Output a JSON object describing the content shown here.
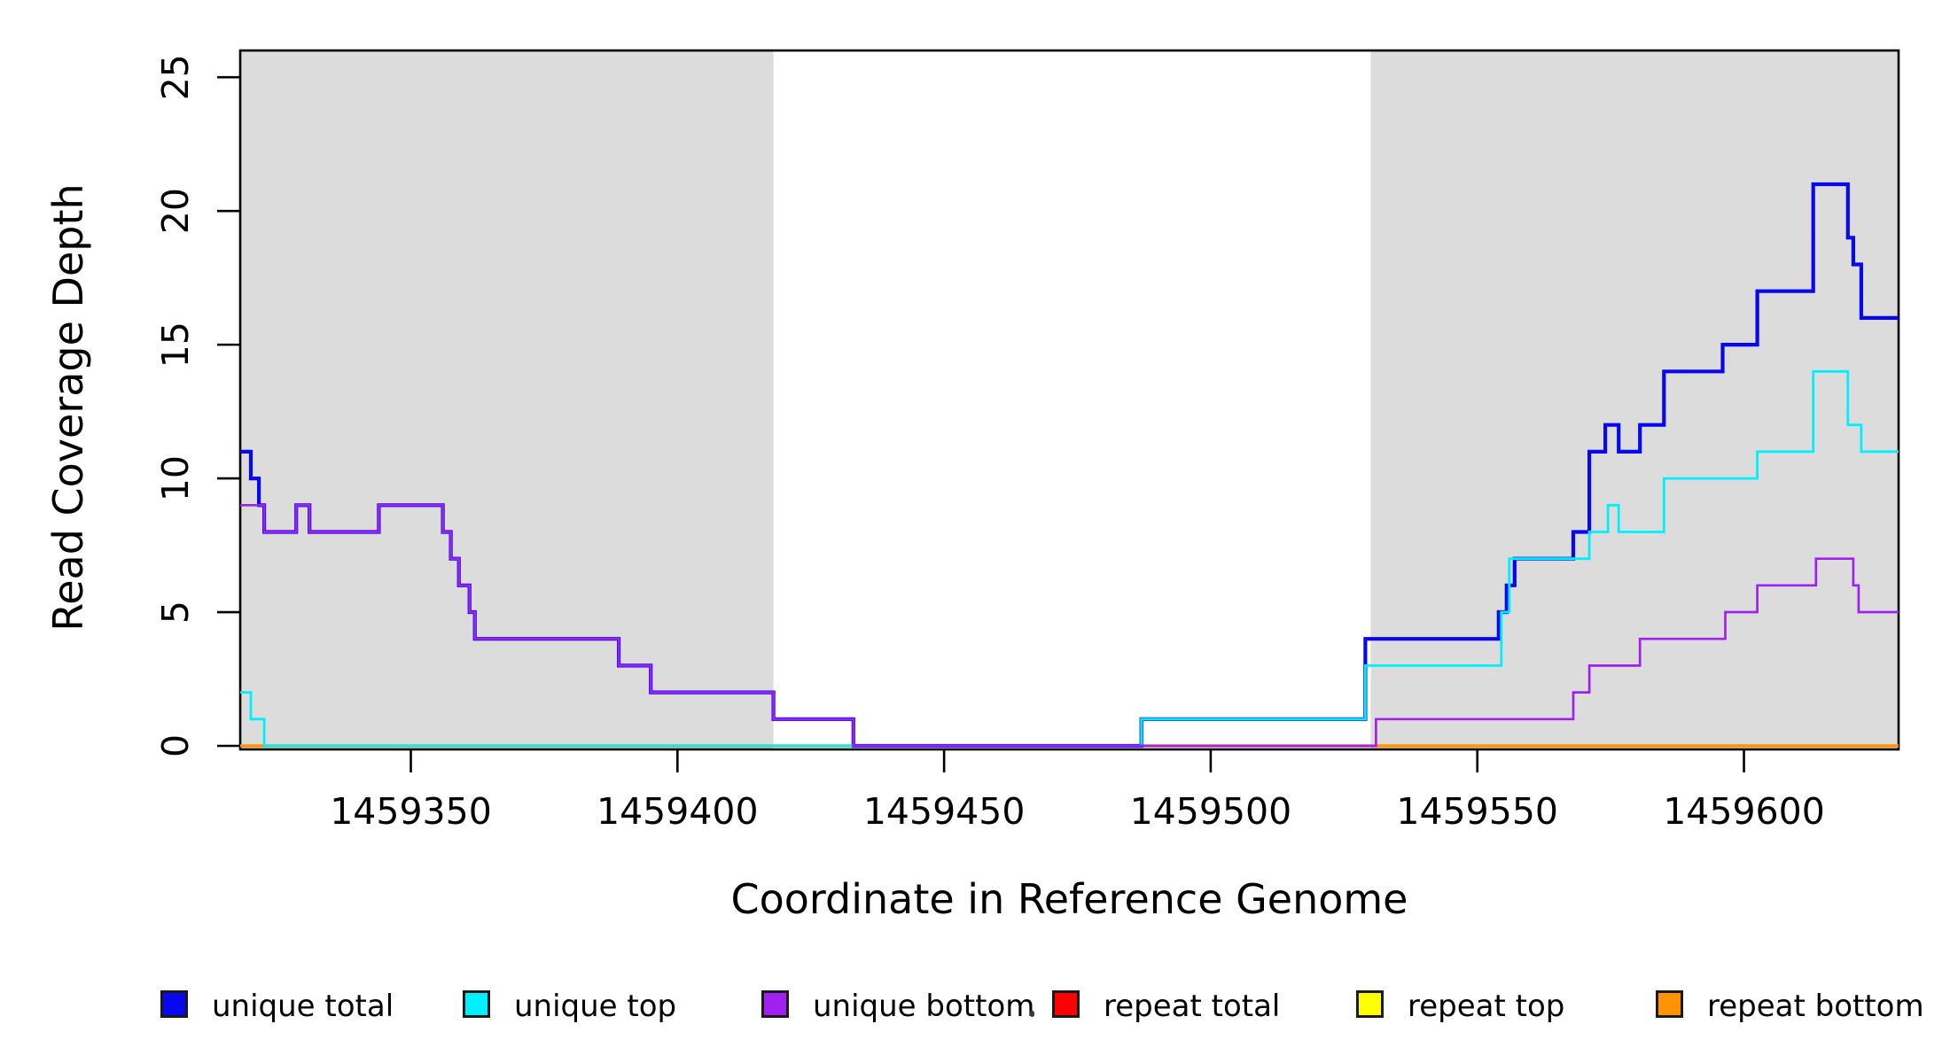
{
  "chart_data": {
    "type": "line",
    "subtype": "step-coverage-plot",
    "title": "",
    "xlabel": "Coordinate in Reference Genome",
    "ylabel": "Read Coverage Depth",
    "xlim": [
      1459318,
      1459629
    ],
    "ylim": [
      0,
      26
    ],
    "x_ticks": [
      1459350,
      1459400,
      1459450,
      1459500,
      1459550,
      1459600
    ],
    "y_ticks": [
      0,
      5,
      10,
      15,
      20,
      25
    ],
    "grid": false,
    "legend_position": "bottom",
    "shade_color": "#dcdcdc",
    "axis_color": "#000000",
    "shaded_regions": [
      {
        "from": 1459318,
        "to": 1459418
      },
      {
        "from": 1459530,
        "to": 1459629
      }
    ],
    "x_end": 1459629,
    "series": [
      {
        "name": "unique total",
        "color": "#0808f0",
        "width": 4.2,
        "draw_order": 4,
        "points": [
          [
            1459318,
            11
          ],
          [
            1459320,
            10
          ],
          [
            1459321.5,
            9
          ],
          [
            1459322.5,
            8
          ],
          [
            1459328.5,
            9
          ],
          [
            1459331,
            8
          ],
          [
            1459344,
            9
          ],
          [
            1459356,
            8
          ],
          [
            1459357.5,
            7
          ],
          [
            1459359,
            6
          ],
          [
            1459361,
            5
          ],
          [
            1459362,
            4
          ],
          [
            1459389,
            3
          ],
          [
            1459395,
            2
          ],
          [
            1459418,
            1
          ],
          [
            1459433,
            0
          ],
          [
            1459487,
            1
          ],
          [
            1459529,
            4
          ],
          [
            1459554,
            5
          ],
          [
            1459555.5,
            6
          ],
          [
            1459557,
            7
          ],
          [
            1459568,
            8
          ],
          [
            1459571,
            11
          ],
          [
            1459574,
            12
          ],
          [
            1459576.5,
            11
          ],
          [
            1459580.5,
            12
          ],
          [
            1459585,
            14
          ],
          [
            1459596,
            15
          ],
          [
            1459602.5,
            17
          ],
          [
            1459613,
            21
          ],
          [
            1459619.5,
            19
          ],
          [
            1459620.5,
            18
          ],
          [
            1459622,
            16
          ]
        ]
      },
      {
        "name": "unique top",
        "color": "#00efff",
        "width": 2.8,
        "draw_order": 5,
        "points": [
          [
            1459318,
            2
          ],
          [
            1459320,
            1
          ],
          [
            1459322.5,
            0
          ],
          [
            1459487,
            1
          ],
          [
            1459529,
            3
          ],
          [
            1459554.5,
            5
          ],
          [
            1459556,
            7
          ],
          [
            1459571,
            8
          ],
          [
            1459574.5,
            9
          ],
          [
            1459576.5,
            8
          ],
          [
            1459585,
            10
          ],
          [
            1459602.5,
            11
          ],
          [
            1459613,
            14
          ],
          [
            1459619.5,
            12
          ],
          [
            1459622,
            11
          ]
        ]
      },
      {
        "name": "unique bottom",
        "color": "#a020f0",
        "width": 2.7,
        "draw_order": 6,
        "points": [
          [
            1459318,
            9
          ],
          [
            1459322.5,
            8
          ],
          [
            1459328.5,
            9
          ],
          [
            1459331,
            8
          ],
          [
            1459344,
            9
          ],
          [
            1459356,
            8
          ],
          [
            1459357.5,
            7
          ],
          [
            1459359,
            6
          ],
          [
            1459361,
            5
          ],
          [
            1459362,
            4
          ],
          [
            1459389,
            3
          ],
          [
            1459395,
            2
          ],
          [
            1459418,
            1
          ],
          [
            1459433,
            0
          ],
          [
            1459531,
            1
          ],
          [
            1459568,
            2
          ],
          [
            1459571,
            3
          ],
          [
            1459580.5,
            4
          ],
          [
            1459596.5,
            5
          ],
          [
            1459602.5,
            6
          ],
          [
            1459613.5,
            7
          ],
          [
            1459620.5,
            6
          ],
          [
            1459621.5,
            5
          ]
        ]
      },
      {
        "name": "repeat total",
        "color": "#ff0000",
        "width": 2.4,
        "draw_order": 1,
        "points": [
          [
            1459318,
            0
          ]
        ]
      },
      {
        "name": "repeat top",
        "color": "#ffff00",
        "width": 2.4,
        "draw_order": 2,
        "points": [
          [
            1459318,
            0
          ]
        ]
      },
      {
        "name": "repeat bottom",
        "color": "#ff9400",
        "width": 3.4,
        "draw_order": 3,
        "points": [
          [
            1459318,
            0
          ]
        ]
      }
    ]
  }
}
